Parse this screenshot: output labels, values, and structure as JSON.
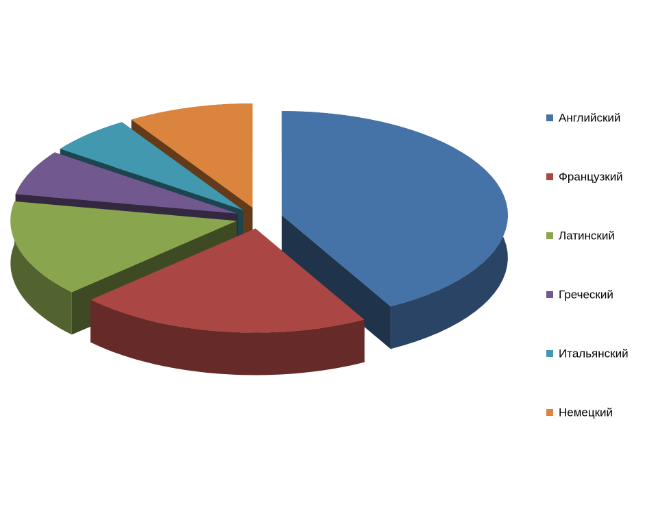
{
  "chart_data": {
    "type": "pie3d",
    "categories": [
      "Английский",
      "Французкий",
      "Латинский",
      "Греческий",
      "Итальянский",
      "Немецкий"
    ],
    "values": [
      42,
      21,
      15,
      7,
      6,
      9
    ],
    "colors": [
      "#4572a7",
      "#aa4643",
      "#89a54e",
      "#71588f",
      "#4198af",
      "#db843d"
    ],
    "legend": "right"
  }
}
